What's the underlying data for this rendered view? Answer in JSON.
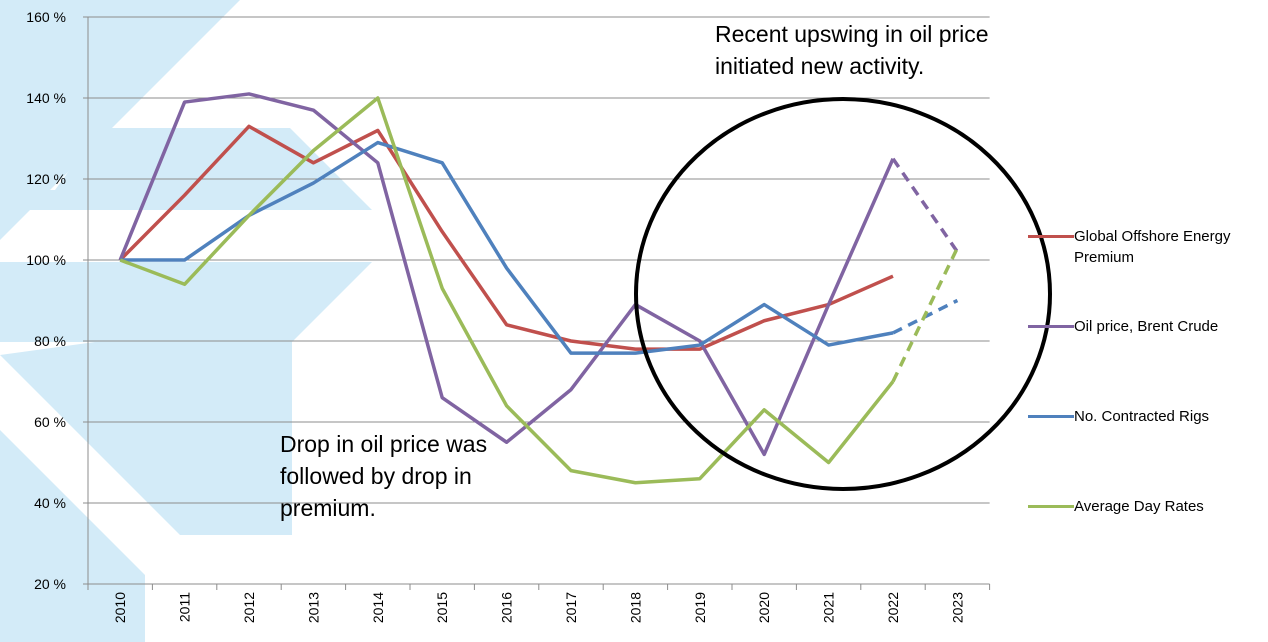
{
  "chart_data": {
    "type": "line",
    "categories": [
      "2010",
      "2011",
      "2012",
      "2013",
      "2014",
      "2015",
      "2016",
      "2017",
      "2018",
      "2019",
      "2020",
      "2021",
      "2022",
      "2023"
    ],
    "series": [
      {
        "name": "Global Offshore Energy Premium",
        "color": "#c0504d",
        "dash_last": false,
        "values": [
          100,
          116,
          133,
          124,
          132,
          107,
          84,
          80,
          78,
          78,
          85,
          89,
          96,
          null
        ]
      },
      {
        "name": "Oil price, Brent Crude",
        "color": "#8064a2",
        "dash_last": true,
        "values": [
          100,
          139,
          141,
          137,
          124,
          66,
          55,
          68,
          89,
          80,
          52,
          89,
          125,
          102
        ]
      },
      {
        "name": "No. Contracted Rigs",
        "color": "#4f81bd",
        "dash_last": true,
        "values": [
          100,
          100,
          111,
          119,
          129,
          124,
          98,
          77,
          77,
          79,
          89,
          79,
          82,
          90
        ]
      },
      {
        "name": "Average Day Rates",
        "color": "#9bbb59",
        "dash_last": true,
        "values": [
          100,
          94,
          111,
          127,
          140,
          93,
          64,
          48,
          45,
          46,
          63,
          50,
          70,
          103
        ]
      }
    ],
    "ylim": [
      20,
      160
    ],
    "yticks": [
      {
        "value": 20,
        "label": "20 %"
      },
      {
        "value": 40,
        "label": "40 %"
      },
      {
        "value": 60,
        "label": "60 %"
      },
      {
        "value": 80,
        "label": "80 %"
      },
      {
        "value": 100,
        "label": "100 %"
      },
      {
        "value": 120,
        "label": "120 %"
      },
      {
        "value": 140,
        "label": "140 %"
      },
      {
        "value": 160,
        "label": "160 %"
      }
    ],
    "grid": true,
    "annotations": [
      "Recent upswing in oil price initiated new activity.",
      "Drop in oil price was followed by drop in premium."
    ]
  }
}
